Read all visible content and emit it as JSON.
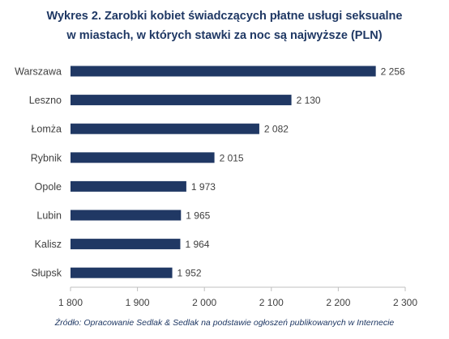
{
  "chart_data": {
    "type": "bar",
    "orientation": "horizontal",
    "title": [
      "Wykres 2. Zarobki kobiet świadczących płatne usługi seksualne",
      "w miastach, w których stawki za noc są najwyższe (PLN)"
    ],
    "categories": [
      "Warszawa",
      "Leszno",
      "Łomża",
      "Rybnik",
      "Opole",
      "Lubin",
      "Kalisz",
      "Słupsk"
    ],
    "values": [
      2256,
      2130,
      2082,
      2015,
      1973,
      1965,
      1964,
      1952
    ],
    "value_labels": [
      "2 256",
      "2 130",
      "2 082",
      "2 015",
      "1 973",
      "1 965",
      "1 964",
      "1 952"
    ],
    "xlim": [
      1800,
      2300
    ],
    "xticks": [
      1800,
      1900,
      2000,
      2100,
      2200,
      2300
    ],
    "xtick_labels": [
      "1 800",
      "1 900",
      "2 000",
      "2 100",
      "2 200",
      "2 300"
    ],
    "xlabel": "",
    "ylabel": "",
    "grid": false,
    "legend": "none",
    "bar_color": "#203864",
    "source": "Źródło: Opracowanie Sedlak & Sedlak na podstawie ogłoszeń publikowanych w Internecie"
  }
}
